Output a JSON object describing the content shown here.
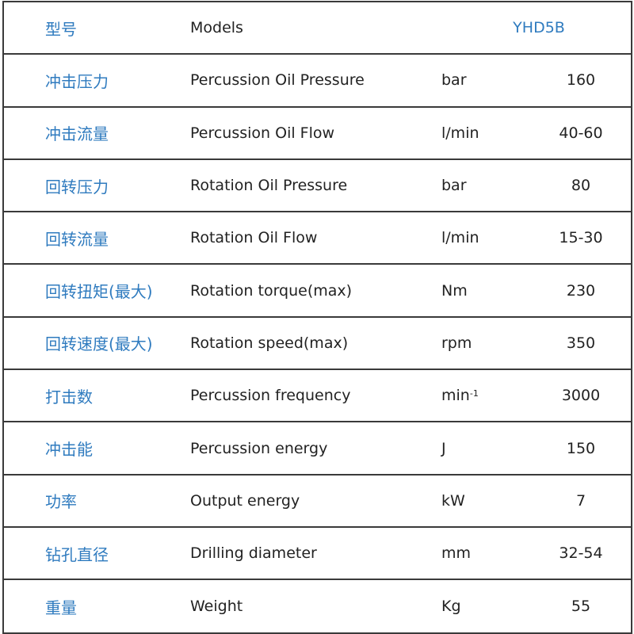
{
  "header": {
    "zh": "型号",
    "en": "Models",
    "model": "YHD5B"
  },
  "rows": [
    {
      "zh": "冲击压力",
      "en": "Percussion Oil Pressure",
      "unit": "bar",
      "value": "160"
    },
    {
      "zh": "冲击流量",
      "en": "Percussion Oil Flow",
      "unit": "l/min",
      "value": "40-60"
    },
    {
      "zh": "回转压力",
      "en": "Rotation Oil Pressure",
      "unit": "bar",
      "value": "80"
    },
    {
      "zh": "回转流量",
      "en": "Rotation Oil Flow",
      "unit": "l/min",
      "value": "15-30"
    },
    {
      "zh": "回转扭矩(最大)",
      "en": "Rotation torque(max)",
      "unit": "Nm",
      "value": "230"
    },
    {
      "zh": "回转速度(最大)",
      "en": "Rotation speed(max)",
      "unit": "rpm",
      "value": "350"
    },
    {
      "zh": "打击数",
      "en": "Percussion frequency",
      "unit": "min",
      "unit_sup": "-1",
      "value": "3000"
    },
    {
      "zh": "冲击能",
      "en": "Percussion energy",
      "unit": "J",
      "value": "150"
    },
    {
      "zh": "功率",
      "en": "Output energy",
      "unit": "kW",
      "value": "7"
    },
    {
      "zh": "钻孔直径",
      "en": "Drilling diameter",
      "unit": "mm",
      "value": "32-54"
    },
    {
      "zh": "重量",
      "en": "Weight",
      "unit": "Kg",
      "value": "55"
    }
  ],
  "colors": {
    "accent": "#2f7bbf",
    "text": "#222222",
    "border": "#3a3a3a"
  }
}
